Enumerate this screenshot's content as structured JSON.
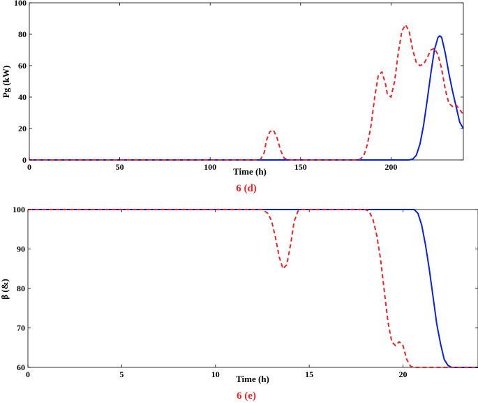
{
  "chart_data": [
    {
      "type": "line",
      "panel_label": "6 (d)",
      "xlabel": "Time (h)",
      "ylabel": "Pg (kW)",
      "xlim": [
        0,
        240
      ],
      "ylim": [
        0,
        100
      ],
      "xticks": [
        0,
        50,
        100,
        150,
        200
      ],
      "yticks": [
        0,
        20,
        40,
        60,
        80,
        100
      ],
      "grid": false,
      "series": [
        {
          "color": "#0b1fe0",
          "style": "solid",
          "x": [
            0,
            100,
            150,
            200,
            210,
            212,
            214,
            216,
            218,
            220,
            222,
            224,
            226,
            227,
            228,
            230,
            232,
            234,
            236,
            238,
            240
          ],
          "y": [
            0,
            0,
            0,
            0,
            0,
            0.5,
            3,
            10,
            22,
            38,
            55,
            70,
            78,
            79,
            78,
            68,
            55,
            44,
            34,
            24,
            20
          ]
        },
        {
          "color": "#e8262a",
          "style": "dashed",
          "x": [
            0,
            120,
            125,
            128,
            130,
            131,
            133,
            135,
            137,
            139,
            141,
            145,
            150,
            160,
            170,
            180,
            183,
            185,
            187,
            189,
            191,
            193,
            195,
            197,
            198,
            200,
            202,
            204,
            206,
            208,
            210,
            212,
            214,
            216,
            218,
            220,
            222,
            224,
            226,
            228,
            230,
            232,
            234,
            236,
            238,
            240
          ],
          "y": [
            0,
            0,
            0,
            0.5,
            5,
            12,
            18,
            19,
            14,
            6,
            1,
            0,
            0,
            0,
            0,
            0,
            0.5,
            3,
            10,
            22,
            40,
            54,
            56,
            48,
            42,
            40,
            50,
            68,
            82,
            86,
            82,
            70,
            62,
            60,
            61,
            65,
            70,
            71,
            67,
            58,
            45,
            36,
            34,
            35,
            32,
            29
          ]
        }
      ]
    },
    {
      "type": "line",
      "panel_label": "6 (e)",
      "xlabel": "Time (h)",
      "ylabel": "β (&)",
      "xlim": [
        0,
        24
      ],
      "ylim": [
        60,
        100
      ],
      "xticks": [
        0,
        5,
        10,
        15,
        20
      ],
      "yticks": [
        60,
        70,
        80,
        90,
        100
      ],
      "grid": false,
      "series": [
        {
          "color": "#0b1fe0",
          "style": "solid",
          "x": [
            0,
            10,
            20,
            20.6,
            20.8,
            21.0,
            21.2,
            21.4,
            21.6,
            21.8,
            22.0,
            22.2,
            22.4,
            22.6,
            24
          ],
          "y": [
            100,
            100,
            100,
            100,
            99,
            96,
            91,
            85,
            78,
            71,
            66,
            62,
            60.5,
            60,
            60
          ]
        },
        {
          "color": "#e8262a",
          "style": "dashed",
          "x": [
            0,
            12.5,
            12.8,
            13.0,
            13.2,
            13.4,
            13.6,
            13.8,
            14.0,
            14.2,
            14.4,
            14.6,
            15,
            17,
            18.0,
            18.2,
            18.4,
            18.6,
            18.8,
            19.0,
            19.2,
            19.4,
            19.6,
            19.8,
            20.0,
            20.2,
            20.4,
            20.6,
            21.0,
            22,
            23,
            24
          ],
          "y": [
            100,
            100,
            99,
            97,
            93,
            88,
            85,
            86,
            91,
            97,
            99.6,
            100,
            100,
            100,
            100,
            99.5,
            97.5,
            93.5,
            87.5,
            79.5,
            71.5,
            66.5,
            65.5,
            66.5,
            65.5,
            62,
            60.3,
            60,
            60,
            60,
            60,
            60
          ]
        }
      ]
    }
  ]
}
